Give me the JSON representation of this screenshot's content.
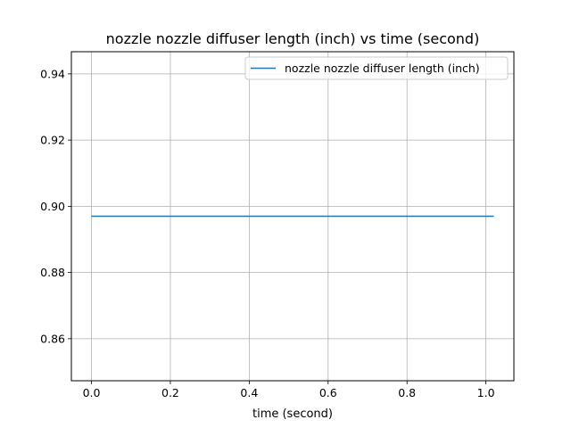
{
  "chart_data": {
    "type": "line",
    "title": "nozzle nozzle diffuser length (inch) vs time (second)",
    "xlabel": "time (second)",
    "ylabel": "",
    "xlim": [
      -0.051,
      1.071
    ],
    "ylim": [
      0.8473,
      0.9467
    ],
    "xticks": [
      0.0,
      0.2,
      0.4,
      0.6,
      0.8,
      1.0
    ],
    "xtick_labels": [
      "0.0",
      "0.2",
      "0.4",
      "0.6",
      "0.8",
      "1.0"
    ],
    "yticks": [
      0.86,
      0.88,
      0.9,
      0.92,
      0.94
    ],
    "ytick_labels": [
      "0.86",
      "0.88",
      "0.90",
      "0.92",
      "0.94"
    ],
    "grid": true,
    "legend_position": "top-right",
    "series": [
      {
        "name": "nozzle nozzle diffuser length (inch)",
        "color": "#1f77b4",
        "x": [
          0.0,
          1.02
        ],
        "y": [
          0.897,
          0.897
        ]
      }
    ]
  }
}
